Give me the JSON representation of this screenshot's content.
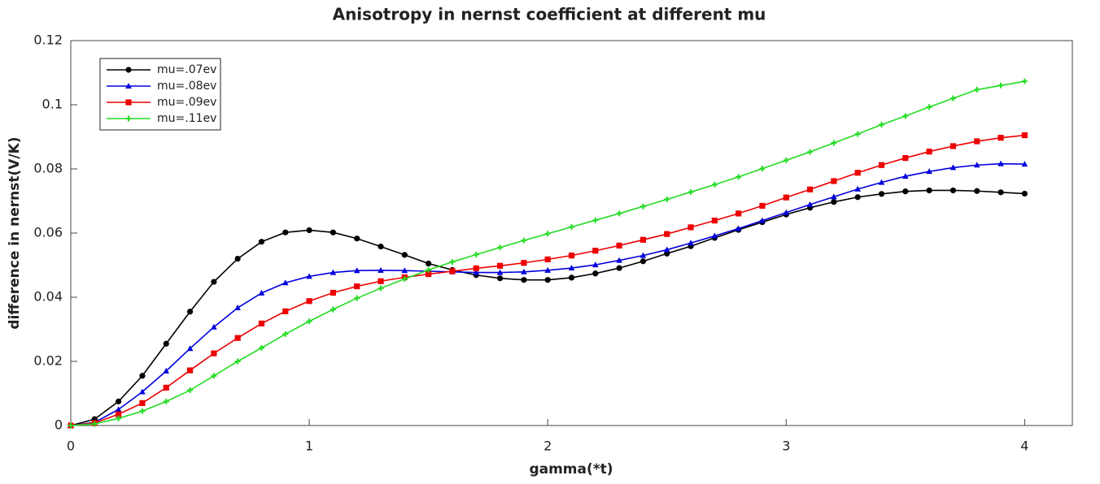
{
  "chart_data": {
    "type": "line",
    "title": "Anisotropy in nernst coefficient at different mu",
    "x_label": "gamma(*t)",
    "y_label": "difference in nernst(V/K)",
    "x": [
      0,
      0.1,
      0.2,
      0.3,
      0.4,
      0.5,
      0.6,
      0.7,
      0.8,
      0.9,
      1.0,
      1.1,
      1.2,
      1.3,
      1.4,
      1.5,
      1.6,
      1.7,
      1.8,
      1.9,
      2.0,
      2.1,
      2.2,
      2.3,
      2.4,
      2.5,
      2.6,
      2.7,
      2.8,
      2.9,
      3.0,
      3.1,
      3.2,
      3.3,
      3.4,
      3.5,
      3.6,
      3.7,
      3.8,
      3.9,
      4.0
    ],
    "series": [
      {
        "name": "mu=.07ev",
        "color": "#000000",
        "marker": "circle",
        "values": [
          0,
          0.002,
          0.0075,
          0.0155,
          0.0255,
          0.0355,
          0.0448,
          0.052,
          0.0573,
          0.0602,
          0.0609,
          0.0602,
          0.0583,
          0.0558,
          0.0532,
          0.0505,
          0.0485,
          0.0469,
          0.0459,
          0.0454,
          0.0454,
          0.0461,
          0.0474,
          0.0491,
          0.0512,
          0.0536,
          0.0559,
          0.0585,
          0.061,
          0.0634,
          0.0658,
          0.0679,
          0.0697,
          0.0712,
          0.0722,
          0.073,
          0.0733,
          0.0733,
          0.0731,
          0.0727,
          0.0723
        ]
      },
      {
        "name": "mu=.08ev",
        "color": "#0000dd",
        "marker": "triangle",
        "values": [
          0,
          0.001,
          0.005,
          0.0105,
          0.017,
          0.024,
          0.0307,
          0.0367,
          0.0413,
          0.0445,
          0.0465,
          0.0477,
          0.0483,
          0.0484,
          0.0483,
          0.0481,
          0.0479,
          0.0477,
          0.0477,
          0.0479,
          0.0484,
          0.0491,
          0.0501,
          0.0515,
          0.053,
          0.0548,
          0.0569,
          0.0591,
          0.0614,
          0.0639,
          0.0664,
          0.0689,
          0.0713,
          0.0737,
          0.0758,
          0.0777,
          0.0792,
          0.0804,
          0.0812,
          0.0816,
          0.0815
        ]
      },
      {
        "name": "mu=.09ev",
        "color": "#ee0000",
        "marker": "square",
        "values": [
          0,
          0.0008,
          0.0035,
          0.007,
          0.0118,
          0.0172,
          0.0225,
          0.0273,
          0.0318,
          0.0356,
          0.0388,
          0.0414,
          0.0434,
          0.045,
          0.0462,
          0.0472,
          0.0481,
          0.049,
          0.0498,
          0.0507,
          0.0518,
          0.053,
          0.0545,
          0.0561,
          0.0579,
          0.0597,
          0.0618,
          0.0639,
          0.0661,
          0.0685,
          0.0711,
          0.0736,
          0.0762,
          0.0788,
          0.0812,
          0.0834,
          0.0854,
          0.0871,
          0.0886,
          0.0897,
          0.0905
        ]
      },
      {
        "name": "mu=.11ev",
        "color": "#22dd22",
        "marker": "plus",
        "values": [
          0,
          0.0005,
          0.0022,
          0.0045,
          0.0075,
          0.011,
          0.0155,
          0.02,
          0.0242,
          0.0285,
          0.0325,
          0.0362,
          0.0397,
          0.0428,
          0.0457,
          0.0485,
          0.051,
          0.0533,
          0.0555,
          0.0577,
          0.0598,
          0.0619,
          0.064,
          0.0661,
          0.0683,
          0.0705,
          0.0728,
          0.0751,
          0.0775,
          0.0801,
          0.0827,
          0.0853,
          0.0881,
          0.0909,
          0.0938,
          0.0965,
          0.0993,
          0.102,
          0.1047,
          0.106,
          0.1073
        ]
      }
    ],
    "xlim": [
      0,
      4.2
    ],
    "xticks": [
      0,
      1,
      2,
      3,
      4
    ],
    "ylim": [
      0,
      0.12
    ],
    "yticks": [
      0,
      0.02,
      0.04,
      0.06,
      0.08,
      0.1,
      0.12
    ],
    "grid": false,
    "legend": "upper left"
  }
}
